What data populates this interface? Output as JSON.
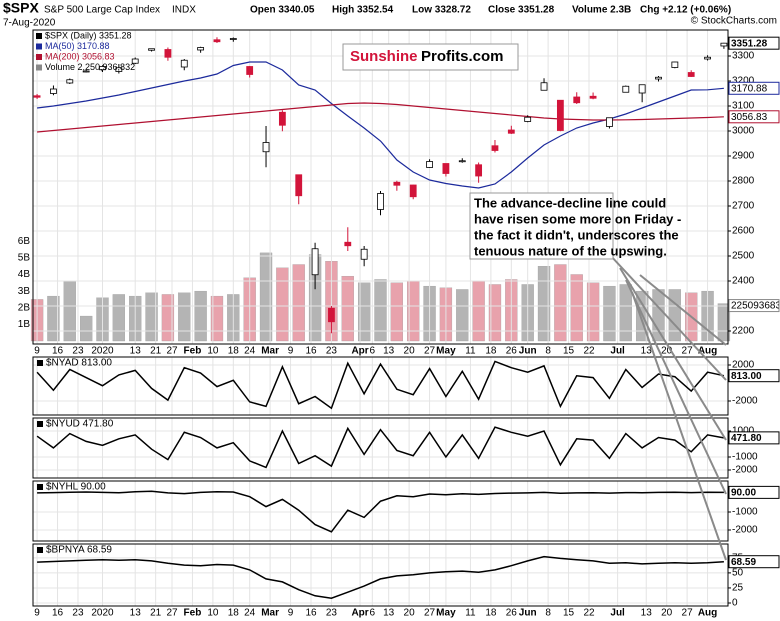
{
  "chart_data": [
    {
      "type": "candlestick",
      "header": {
        "symbol": "$SPX",
        "name": "S&P 500 Large Cap Index",
        "exchange": "INDX",
        "date": "7-Aug-2020",
        "open": "Open 3340.05",
        "high": "High 3352.54",
        "low": "Low 3328.72",
        "close": "Close 3351.28",
        "volume": "Volume 2.3B",
        "change": "Chg +2.12 (+0.06%)",
        "copyright": "© StockCharts.com"
      },
      "logo": [
        "Sunshine",
        "Profits.com"
      ],
      "annotation": {
        "lines": [
          "The advance-decline line could",
          "have risen some more on Friday -",
          "the fact it didn't, underscores the",
          "tenuous nature of the upswing."
        ]
      },
      "name": "$SPX (Daily) 3351.28",
      "up_color": "#ffffff",
      "down_color": "#d2143a",
      "x": [
        0,
        4,
        8,
        12,
        16,
        20,
        24,
        28,
        32,
        36,
        40,
        44,
        48,
        52,
        56,
        60,
        64,
        68,
        72,
        76,
        80,
        84,
        88,
        92,
        96,
        100,
        104,
        108,
        112,
        116,
        120,
        124,
        128,
        132,
        136,
        140,
        144,
        148,
        152,
        156,
        160,
        164,
        168
      ],
      "open": [
        3141,
        3150,
        3192,
        3237,
        3245,
        3238,
        3271,
        3323,
        3326,
        3256,
        3324,
        3365,
        3369,
        3258,
        2917,
        3075,
        2825,
        2425,
        2291,
        2555,
        2487,
        2686,
        2795,
        2784,
        2854,
        2870,
        2879,
        2865,
        2941,
        3004,
        3038,
        3163,
        3123,
        3136,
        3139,
        3018,
        3155,
        3152,
        3208,
        3254,
        3234,
        3288,
        3340.05
      ],
      "high": [
        3148,
        3182,
        3210,
        3247,
        3263,
        3268,
        3294,
        3330,
        3334,
        3288,
        3337,
        3375,
        3374,
        3260,
        3020,
        3083,
        2825,
        2553,
        2300,
        2615,
        2540,
        2760,
        2801,
        2785,
        2887,
        2870,
        2891,
        2874,
        2964,
        3021,
        3063,
        3211,
        3123,
        3155,
        3154,
        3054,
        3182,
        3186,
        3220,
        3277,
        3243,
        3303,
        3352.54
      ],
      "low": [
        3128,
        3143,
        3188,
        3234,
        3236,
        3230,
        3268,
        3318,
        3281,
        3243,
        3313,
        3352,
        3357,
        3214,
        2855,
        2999,
        2707,
        2367,
        2191,
        2520,
        2459,
        2663,
        2761,
        2727,
        2852,
        2818,
        2873,
        2793,
        2914,
        2988,
        3035,
        3163,
        2999,
        3108,
        3127,
        3010,
        3155,
        3115,
        3198,
        3251,
        3216,
        3282,
        3328.72
      ],
      "close": [
        3135,
        3168,
        3205,
        3240,
        3258,
        3253,
        3288,
        3329,
        3295,
        3283,
        3334,
        3357,
        3370,
        3226,
        2954,
        3023,
        2741,
        2529,
        2237,
        2541,
        2527,
        2750,
        2783,
        2737,
        2878,
        2830,
        2881,
        2820,
        2922,
        2991,
        3055,
        3193,
        3002,
        3113,
        3131,
        3053,
        3179,
        3185,
        3215,
        3276,
        3218,
        3295,
        3351.28
      ],
      "series": [
        {
          "name": "MA(50) 3170.88",
          "color": "#1c2a9c",
          "values": [
            3092,
            3100,
            3110,
            3120,
            3132,
            3144,
            3158,
            3172,
            3186,
            3200,
            3212,
            3228,
            3262,
            3276,
            3276,
            3244,
            3184,
            3164,
            3110,
            3060,
            3012,
            2960,
            2884,
            2836,
            2804,
            2790,
            2780,
            2772,
            2788,
            2836,
            2892,
            2944,
            2980,
            3012,
            3032,
            3048,
            3068,
            3092,
            3116,
            3140,
            3164,
            3165,
            3170.88
          ]
        },
        {
          "name": "MA(200) 3056.83",
          "color": "#b01030",
          "values": [
            2996,
            3002,
            3008,
            3014,
            3020,
            3026,
            3032,
            3038,
            3044,
            3050,
            3056,
            3062,
            3068,
            3074,
            3080,
            3086,
            3092,
            3098,
            3104,
            3110,
            3112,
            3110,
            3106,
            3100,
            3094,
            3088,
            3082,
            3076,
            3070,
            3064,
            3058,
            3052,
            3048,
            3046,
            3044,
            3044,
            3045,
            3046,
            3048,
            3050,
            3052,
            3054,
            3056.83
          ]
        }
      ],
      "volume": {
        "name": "Volume 2,250,936,832",
        "color": "#b4b4b4",
        "down_color": "#e8a2ac",
        "values": [
          2500000000,
          2700000000,
          3600000000,
          1500000000,
          2600000000,
          2800000000,
          2700000000,
          2900000000,
          2800000000,
          2900000000,
          3000000000,
          2700000000,
          2800000000,
          3800000000,
          5300000000,
          4400000000,
          4600000000,
          5200000000,
          4800000000,
          3900000000,
          3500000000,
          3700000000,
          3500000000,
          3600000000,
          3300000000,
          3200000000,
          3100000000,
          3600000000,
          3400000000,
          3700000000,
          3400000000,
          4500000000,
          4600000000,
          4000000000,
          3500000000,
          3300000000,
          3400000000,
          3000000000,
          3100000000,
          3100000000,
          2900000000,
          3000000000,
          2250936832
        ],
        "ylim": [
          -180000000,
          18700000000
        ],
        "yticks": [
          {
            "value": 1000000000,
            "label": "1B"
          },
          {
            "value": 2000000000,
            "label": "2B"
          },
          {
            "value": 3000000000,
            "label": "3B"
          },
          {
            "value": 4000000000,
            "label": "4B"
          },
          {
            "value": 5000000000,
            "label": "5B"
          },
          {
            "value": 6000000000,
            "label": "6B"
          }
        ]
      },
      "xlim": [
        -1,
        169
      ],
      "xticks": [
        {
          "value": 0,
          "label": "9"
        },
        {
          "value": 5,
          "label": "16"
        },
        {
          "value": 10,
          "label": "23"
        },
        {
          "value": 16,
          "label": "2020"
        },
        {
          "value": 24,
          "label": "13"
        },
        {
          "value": 29,
          "label": "21"
        },
        {
          "value": 33,
          "label": "27"
        },
        {
          "value": 38,
          "label": "Feb"
        },
        {
          "value": 43,
          "label": "10"
        },
        {
          "value": 48,
          "label": "18"
        },
        {
          "value": 52,
          "label": "24"
        },
        {
          "value": 57,
          "label": "Mar"
        },
        {
          "value": 62,
          "label": "9"
        },
        {
          "value": 67,
          "label": "16"
        },
        {
          "value": 72,
          "label": "23"
        },
        {
          "value": 79,
          "label": "Apr"
        },
        {
          "value": 82,
          "label": "6"
        },
        {
          "value": 86,
          "label": "13"
        },
        {
          "value": 91,
          "label": "20"
        },
        {
          "value": 96,
          "label": "27"
        },
        {
          "value": 100,
          "label": "May"
        },
        {
          "value": 106,
          "label": "11"
        },
        {
          "value": 111,
          "label": "18"
        },
        {
          "value": 116,
          "label": "26"
        },
        {
          "value": 120,
          "label": "Jun"
        },
        {
          "value": 125,
          "label": "8"
        },
        {
          "value": 130,
          "label": "15"
        },
        {
          "value": 135,
          "label": "22"
        },
        {
          "value": 142,
          "label": "Jul"
        },
        {
          "value": 149,
          "label": "13"
        },
        {
          "value": 154,
          "label": "20"
        },
        {
          "value": 159,
          "label": "27"
        },
        {
          "value": 164,
          "label": "Aug"
        }
      ],
      "ylim": [
        2148,
        3404
      ],
      "yticks": [
        2200,
        2300,
        2400,
        2500,
        2600,
        2700,
        2800,
        2900,
        3000,
        3100,
        3200,
        3300
      ],
      "grid": true
    },
    {
      "type": "line",
      "title": "$NYAD 813.00",
      "color": "#000000",
      "values": [
        1200,
        -800,
        1500,
        600,
        -300,
        900,
        1400,
        -600,
        -1900,
        1700,
        1100,
        -400,
        300,
        -2100,
        -2600,
        1800,
        -2300,
        -1500,
        -2800,
        2200,
        -1200,
        2100,
        -700,
        -1300,
        1600,
        -1500,
        1300,
        -1800,
        2400,
        1700,
        1200,
        1900,
        -2600,
        800,
        600,
        -1700,
        1500,
        -500,
        1000,
        700,
        -900,
        1200,
        813
      ],
      "value_labels": [
        null,
        null,
        null,
        null,
        null,
        null,
        null,
        null,
        null,
        null,
        null,
        null,
        null,
        null,
        null,
        null,
        null,
        null,
        null,
        null,
        null,
        null,
        null,
        null,
        null,
        null,
        null,
        null,
        null,
        null,
        null,
        null,
        null,
        null,
        null,
        null,
        null,
        null,
        null,
        null,
        null,
        null,
        "813.00"
      ],
      "ylim": [
        -3555,
        2890
      ],
      "yticks": [
        2000,
        -2000
      ],
      "grid": true
    },
    {
      "type": "line",
      "title": "$NYUD 471.80",
      "color": "#000000",
      "values": [
        600,
        -300,
        800,
        200,
        -100,
        400,
        700,
        -400,
        -1200,
        900,
        500,
        -300,
        100,
        -1300,
        -1800,
        1000,
        -1500,
        -900,
        -1700,
        1200,
        -800,
        1100,
        -500,
        -900,
        900,
        -1000,
        700,
        -1100,
        1300,
        900,
        600,
        1000,
        -1600,
        400,
        300,
        -1100,
        800,
        -300,
        500,
        300,
        -600,
        700,
        471.8
      ],
      "value_labels": [
        null,
        null,
        null,
        null,
        null,
        null,
        null,
        null,
        null,
        null,
        null,
        null,
        null,
        null,
        null,
        null,
        null,
        null,
        null,
        null,
        null,
        null,
        null,
        null,
        null,
        null,
        null,
        null,
        null,
        null,
        null,
        null,
        null,
        null,
        null,
        null,
        null,
        null,
        null,
        null,
        null,
        null,
        "471.80"
      ],
      "ylim": [
        -2615,
        2000
      ],
      "yticks": [
        1000,
        -1000,
        -2000
      ],
      "grid": true
    },
    {
      "type": "line",
      "title": "$NYHL 90.00",
      "color": "#000000",
      "values": [
        60,
        80,
        100,
        110,
        90,
        70,
        120,
        150,
        60,
        20,
        90,
        130,
        110,
        -150,
        -700,
        -300,
        -900,
        -1700,
        -2100,
        -900,
        -1300,
        -400,
        -100,
        -150,
        0,
        -40,
        10,
        -20,
        30,
        50,
        60,
        90,
        40,
        60,
        70,
        50,
        80,
        70,
        90,
        100,
        80,
        95,
        90
      ],
      "value_labels": [
        null,
        null,
        null,
        null,
        null,
        null,
        null,
        null,
        null,
        null,
        null,
        null,
        null,
        null,
        null,
        null,
        null,
        null,
        null,
        null,
        null,
        null,
        null,
        null,
        null,
        null,
        null,
        null,
        null,
        null,
        null,
        null,
        null,
        null,
        null,
        null,
        null,
        null,
        null,
        null,
        null,
        null,
        "90.00"
      ],
      "ylim": [
        -2611,
        722
      ],
      "yticks": [
        -1000,
        -2000
      ],
      "grid": true
    },
    {
      "type": "line",
      "title": "$BPNYA 68.59",
      "color": "#000000",
      "values": [
        68,
        69,
        70,
        71,
        72,
        71,
        72,
        70,
        66,
        63,
        62,
        64,
        63,
        55,
        40,
        35,
        22,
        12,
        8,
        18,
        28,
        40,
        45,
        47,
        50,
        52,
        53,
        51,
        55,
        62,
        70,
        77,
        74,
        72,
        70,
        66,
        67,
        65,
        66,
        67,
        66,
        67,
        68.59
      ],
      "ylim": [
        -5,
        98
      ],
      "yticks": [
        75,
        50,
        25,
        0
      ],
      "grid": true
    }
  ]
}
